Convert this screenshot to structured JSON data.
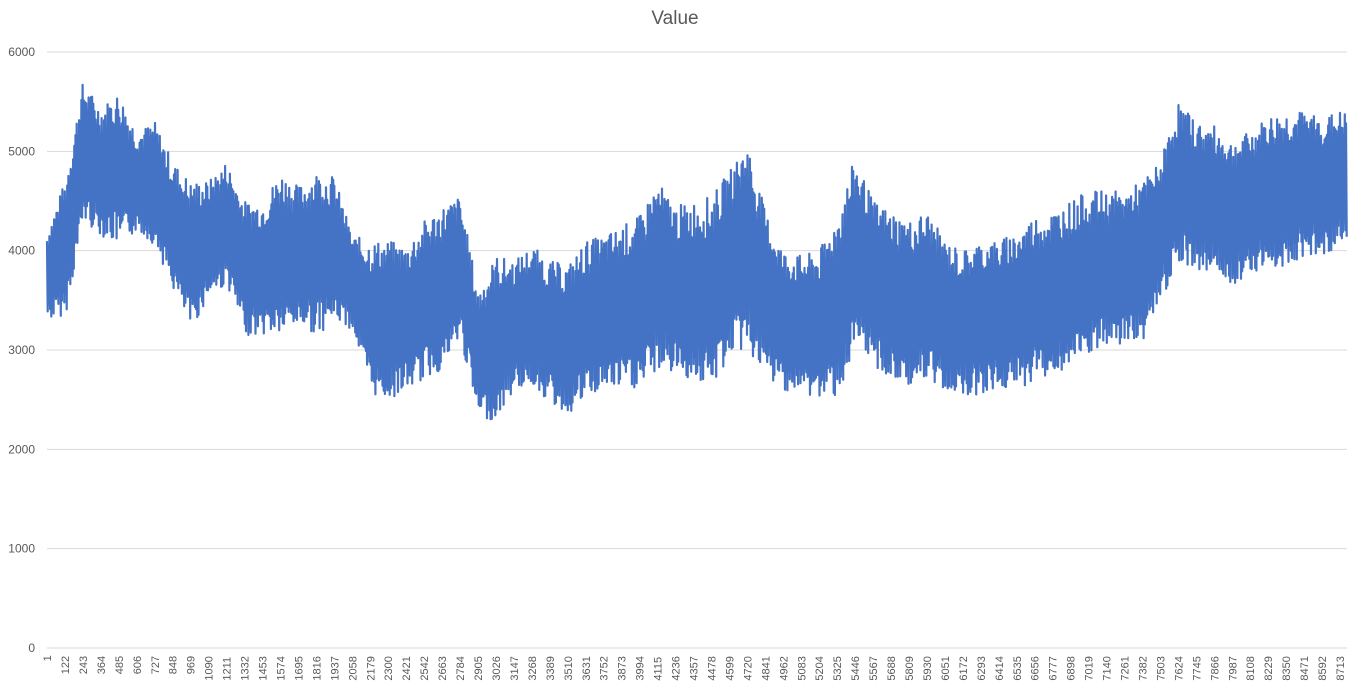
{
  "chart_data": {
    "type": "line",
    "title": "Value",
    "xlabel": "",
    "ylabel": "",
    "ylim": [
      0,
      6000
    ],
    "yticks": [
      0,
      1000,
      2000,
      3000,
      4000,
      5000,
      6000
    ],
    "grid": true,
    "legend": "none",
    "x_range": [
      1,
      8760
    ],
    "x_tick_labels": [
      "1",
      "122",
      "243",
      "364",
      "485",
      "606",
      "727",
      "848",
      "969",
      "1090",
      "1211",
      "1332",
      "1453",
      "1574",
      "1695",
      "1816",
      "1937",
      "2058",
      "2179",
      "2300",
      "2421",
      "2542",
      "2663",
      "2784",
      "2905",
      "3026",
      "3147",
      "3268",
      "3389",
      "3510",
      "3631",
      "3752",
      "3873",
      "3994",
      "4115",
      "4236",
      "4357",
      "4478",
      "4599",
      "4720",
      "4841",
      "4962",
      "5083",
      "5204",
      "5325",
      "5446",
      "5567",
      "5688",
      "5809",
      "5930",
      "6051",
      "6172",
      "6293",
      "6414",
      "6535",
      "6656",
      "6777",
      "6898",
      "7019",
      "7140",
      "7261",
      "7382",
      "7503",
      "7624",
      "7745",
      "7866",
      "7987",
      "8108",
      "8229",
      "8350",
      "8471",
      "8592",
      "8713"
    ],
    "series": [
      {
        "color": "#4472c4",
        "x": [
          1,
          122,
          243,
          364,
          485,
          606,
          727,
          848,
          969,
          1090,
          1211,
          1332,
          1453,
          1574,
          1695,
          1816,
          1937,
          2058,
          2179,
          2300,
          2421,
          2542,
          2663,
          2784,
          2905,
          3026,
          3147,
          3268,
          3389,
          3510,
          3631,
          3752,
          3873,
          3994,
          4115,
          4236,
          4357,
          4478,
          4599,
          4720,
          4841,
          4962,
          5083,
          5204,
          5325,
          5446,
          5567,
          5688,
          5809,
          5930,
          6051,
          6172,
          6293,
          6414,
          6535,
          6656,
          6777,
          6898,
          7019,
          7140,
          7261,
          7382,
          7503,
          7624,
          7745,
          7866,
          7987,
          8108,
          8229,
          8350,
          8471,
          8592,
          8713,
          8760
        ],
        "min": [
          3300,
          3350,
          4300,
          4150,
          4050,
          4200,
          4050,
          3600,
          3200,
          3550,
          3650,
          3150,
          3150,
          3150,
          3250,
          3150,
          3300,
          3200,
          2550,
          2500,
          2600,
          2700,
          2800,
          3100,
          2300,
          2300,
          2600,
          2650,
          2450,
          2350,
          2500,
          2600,
          2600,
          2600,
          2800,
          2750,
          2700,
          2600,
          2950,
          3000,
          2700,
          2600,
          2550,
          2500,
          2550,
          2950,
          2850,
          2650,
          2650,
          2650,
          2600,
          2550,
          2550,
          2600,
          2600,
          2700,
          2750,
          2800,
          2950,
          3000,
          3050,
          3100,
          3500,
          3900,
          3800,
          3800,
          3650,
          3800,
          3800,
          3850,
          3950,
          3950,
          4050,
          4100
        ],
        "max": [
          4200,
          4700,
          5700,
          5450,
          5600,
          5200,
          5300,
          4900,
          4700,
          4700,
          4900,
          4500,
          4500,
          4800,
          4650,
          4800,
          4750,
          4150,
          4100,
          4100,
          4050,
          4300,
          4450,
          4550,
          3600,
          3950,
          3900,
          4050,
          3900,
          3850,
          4100,
          4150,
          4250,
          4350,
          4700,
          4450,
          4500,
          4550,
          4800,
          5100,
          4400,
          4000,
          3950,
          4000,
          4350,
          4950,
          4500,
          4400,
          4300,
          4400,
          4100,
          4000,
          4100,
          4100,
          4200,
          4350,
          4400,
          4500,
          4600,
          4600,
          4600,
          4700,
          4900,
          5500,
          5300,
          5250,
          5100,
          5200,
          5350,
          5400,
          5400,
          5350,
          5400,
          5400
        ]
      }
    ]
  }
}
